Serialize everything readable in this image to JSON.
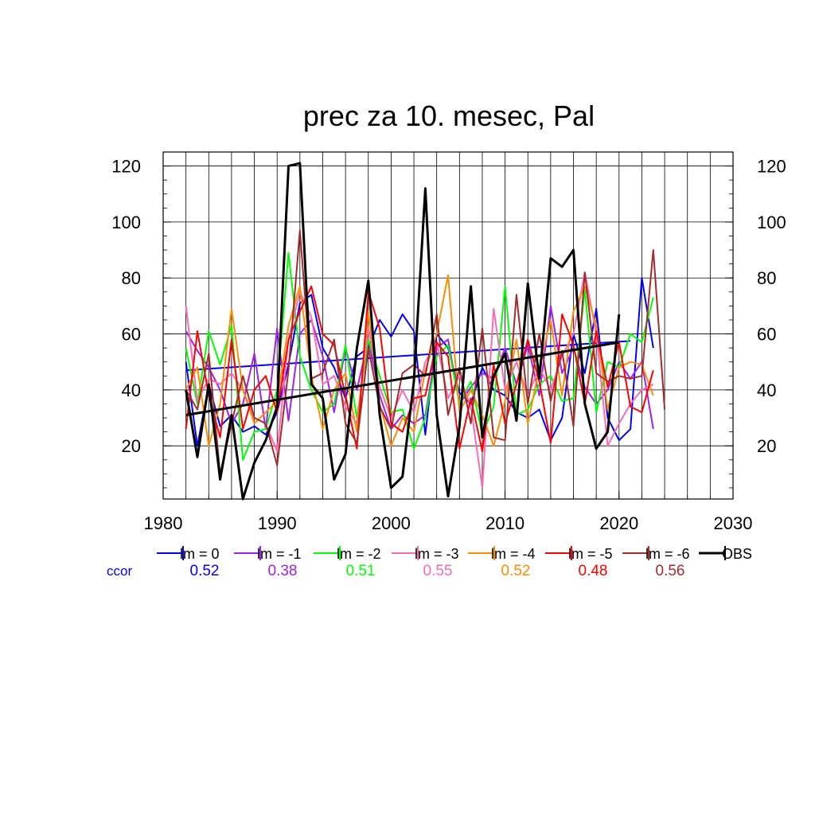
{
  "title": "prec za 10. mesec, Pal",
  "ccor_label": "ccor",
  "chart_data": {
    "type": "line",
    "title": "prec za 10. mesec, Pal",
    "xlim": [
      1980,
      2030
    ],
    "ylim": [
      1,
      125
    ],
    "xticks": [
      1980,
      1990,
      2000,
      2010,
      2020,
      2030
    ],
    "yticks": [
      20,
      40,
      60,
      80,
      100,
      120
    ],
    "grid": true,
    "legend_position": "below",
    "series": [
      {
        "name": "lm = 0",
        "color": "#0000ff",
        "ccor": "0.52",
        "x_start": 1982,
        "values": [
          50,
          20,
          42,
          27,
          31,
          25,
          27,
          24,
          32,
          49,
          71,
          74,
          55,
          48,
          37,
          52,
          55,
          65,
          59,
          67,
          61,
          24,
          60,
          55,
          39,
          35,
          48,
          40,
          38,
          32,
          30,
          33,
          22,
          30,
          60,
          46,
          69,
          30,
          22,
          26,
          80,
          55
        ],
        "trend": [
          [
            1982,
            47
          ],
          [
            2021,
            57.5
          ]
        ]
      },
      {
        "name": "lm = -1",
        "color": "#a020f0",
        "ccor": "0.38",
        "x_start": 1982,
        "values": [
          61,
          54,
          48,
          40,
          28,
          35,
          53,
          26,
          62,
          29,
          60,
          65,
          52,
          32,
          55,
          40,
          58,
          38,
          26,
          31,
          28,
          31,
          55,
          58,
          35,
          41,
          46,
          44,
          55,
          42,
          56,
          38,
          70,
          46,
          55,
          41,
          35,
          40,
          50,
          44,
          50,
          26
        ]
      },
      {
        "name": "lm = -2",
        "color": "#00ff00",
        "ccor": "0.51",
        "x_start": 1982,
        "values": [
          55,
          35,
          61,
          49,
          63,
          15,
          25,
          26,
          40,
          89,
          52,
          40,
          32,
          35,
          56,
          30,
          58,
          45,
          32,
          33,
          19,
          30,
          52,
          56,
          35,
          43,
          24,
          34,
          77,
          31,
          33,
          42,
          45,
          36,
          37,
          76,
          32,
          50,
          48,
          60,
          57,
          73
        ]
      },
      {
        "name": "lm = -3",
        "color": "#ff69b4",
        "ccor": "0.55",
        "x_start": 1982,
        "values": [
          70,
          36,
          44,
          42,
          46,
          40,
          30,
          28,
          18,
          58,
          75,
          66,
          42,
          45,
          34,
          28,
          62,
          41,
          30,
          40,
          32,
          50,
          57,
          37,
          45,
          34,
          5,
          69,
          40,
          50,
          38,
          48,
          40,
          52,
          60,
          82,
          60,
          20,
          28,
          35,
          40,
          42
        ]
      },
      {
        "name": "lm = -4",
        "color": "#ff8c00",
        "ccor": "0.52",
        "x_start": 1982,
        "values": [
          40,
          48,
          20,
          35,
          69,
          40,
          28,
          32,
          36,
          63,
          77,
          45,
          26,
          40,
          46,
          25,
          68,
          35,
          20,
          30,
          25,
          47,
          60,
          81,
          32,
          40,
          31,
          20,
          36,
          58,
          28,
          48,
          65,
          38,
          68,
          77,
          63,
          33,
          48,
          50,
          49,
          38
        ]
      },
      {
        "name": "lm = -5",
        "color": "#ff0000",
        "ccor": "0.48",
        "x_start": 1982,
        "values": [
          26,
          61,
          38,
          23,
          58,
          26,
          40,
          45,
          32,
          58,
          68,
          77,
          60,
          56,
          38,
          19,
          75,
          62,
          28,
          25,
          37,
          38,
          57,
          52,
          19,
          37,
          18,
          49,
          28,
          42,
          58,
          43,
          21,
          67,
          56,
          35,
          61,
          41,
          57,
          34,
          32,
          47
        ]
      },
      {
        "name": "lm = -6",
        "color": "#a52a2a",
        "ccor": "0.56",
        "x_start": 1982,
        "values": [
          40,
          33,
          53,
          10,
          28,
          45,
          30,
          28,
          13,
          47,
          97,
          44,
          46,
          58,
          28,
          21,
          55,
          34,
          26,
          46,
          49,
          45,
          67,
          31,
          48,
          28,
          62,
          23,
          22,
          74,
          35,
          60,
          36,
          54,
          27,
          82,
          46,
          43,
          45,
          44,
          45,
          90,
          33
        ]
      },
      {
        "name": "OBS",
        "color": "#000000",
        "ccor": "",
        "x_start": 1982,
        "values": [
          40,
          16,
          42,
          8,
          31,
          1,
          14,
          22,
          34,
          120,
          121,
          42,
          37,
          8,
          17,
          55,
          79,
          31,
          5,
          9,
          43,
          112,
          31,
          2,
          27,
          77,
          23,
          45,
          53,
          29,
          78,
          44,
          87,
          84,
          90,
          35,
          19,
          25,
          67
        ],
        "trend": [
          [
            1982,
            31
          ],
          [
            2020,
            57
          ]
        ]
      }
    ]
  }
}
